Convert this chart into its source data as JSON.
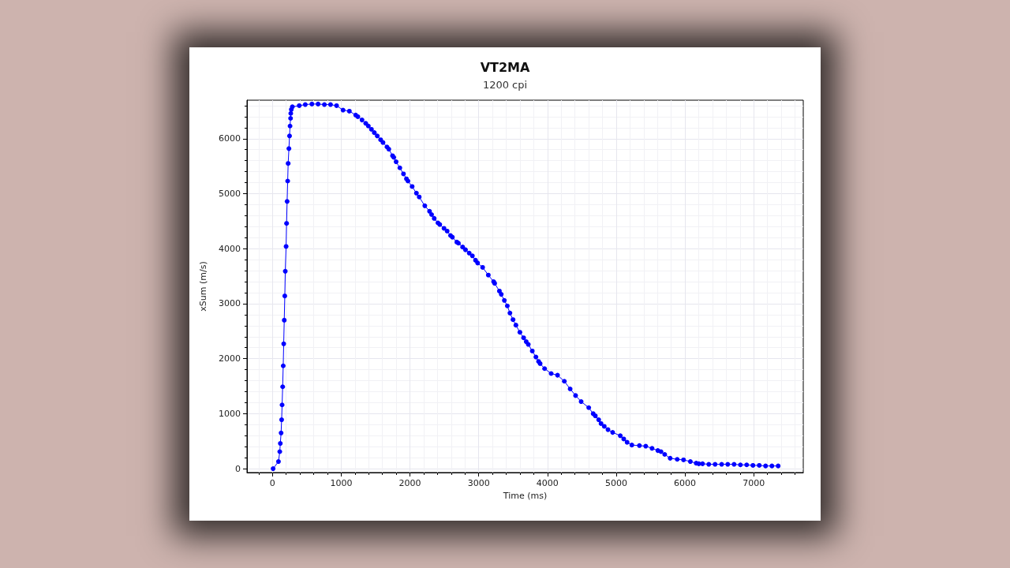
{
  "chart_data": {
    "type": "line",
    "title": "VT2MA",
    "subtitle": "1200 cpi",
    "xlabel": "Time (ms)",
    "ylabel": "xSum (m/s)",
    "x": [
      10,
      88,
      107,
      115,
      126,
      134,
      141,
      149,
      157,
      164,
      172,
      180,
      187,
      199,
      206,
      214,
      222,
      229,
      240,
      249,
      256,
      264,
      267,
      275,
      290,
      390,
      478,
      574,
      664,
      756,
      845,
      933,
      1027,
      1119,
      1211,
      1242,
      1303,
      1357,
      1395,
      1440,
      1482,
      1525,
      1574,
      1608,
      1666,
      1693,
      1747,
      1765,
      1799,
      1853,
      1906,
      1949,
      1971,
      2032,
      2094,
      2135,
      2216,
      2285,
      2315,
      2353,
      2407,
      2434,
      2495,
      2541,
      2590,
      2617,
      2682,
      2705,
      2766,
      2808,
      2862,
      2908,
      2954,
      2984,
      3057,
      3140,
      3217,
      3232,
      3301,
      3328,
      3373,
      3416,
      3454,
      3499,
      3541,
      3599,
      3653,
      3691,
      3721,
      3779,
      3832,
      3871,
      3893,
      3958,
      4054,
      4146,
      4245,
      4330,
      4409,
      4490,
      4600,
      4665,
      4696,
      4745,
      4779,
      4826,
      4880,
      4948,
      5059,
      5109,
      5158,
      5227,
      5337,
      5429,
      5521,
      5605,
      5651,
      5705,
      5784,
      5887,
      5979,
      6078,
      6163,
      6201,
      6255,
      6346,
      6438,
      6533,
      6622,
      6714,
      6806,
      6897,
      6988,
      7080,
      7172,
      7264,
      7355
    ],
    "series": [
      {
        "color": "#0000ff",
        "values": [
          0,
          130,
          310,
          460,
          650,
          890,
          1160,
          1490,
          1870,
          2270,
          2700,
          3140,
          3590,
          4040,
          4460,
          4860,
          5230,
          5550,
          5820,
          6050,
          6230,
          6370,
          6460,
          6530,
          6580,
          6600,
          6620,
          6630,
          6630,
          6620,
          6620,
          6600,
          6520,
          6500,
          6430,
          6400,
          6340,
          6280,
          6230,
          6170,
          6110,
          6050,
          5980,
          5930,
          5850,
          5810,
          5690,
          5660,
          5580,
          5470,
          5360,
          5270,
          5230,
          5130,
          5010,
          4940,
          4780,
          4680,
          4620,
          4550,
          4470,
          4440,
          4370,
          4320,
          4240,
          4210,
          4120,
          4100,
          4030,
          3980,
          3920,
          3870,
          3790,
          3740,
          3660,
          3520,
          3400,
          3370,
          3230,
          3170,
          3060,
          2960,
          2830,
          2710,
          2610,
          2480,
          2380,
          2310,
          2260,
          2140,
          2030,
          1950,
          1910,
          1820,
          1730,
          1700,
          1590,
          1450,
          1330,
          1220,
          1110,
          1000,
          960,
          890,
          820,
          770,
          710,
          660,
          600,
          540,
          480,
          430,
          420,
          410,
          370,
          330,
          310,
          260,
          190,
          170,
          160,
          130,
          100,
          90,
          90,
          80,
          80,
          80,
          80,
          80,
          70,
          70,
          60,
          60,
          50,
          50,
          50
        ]
      }
    ],
    "xlim": [
      -370,
      7720
    ],
    "ylim": [
      -70,
      6700
    ],
    "xticks": [
      0,
      1000,
      2000,
      3000,
      4000,
      5000,
      6000,
      7000
    ],
    "yticks": [
      0,
      1000,
      2000,
      3000,
      4000,
      5000,
      6000
    ],
    "grid": true,
    "marker": "circle",
    "line_style": "solid"
  }
}
